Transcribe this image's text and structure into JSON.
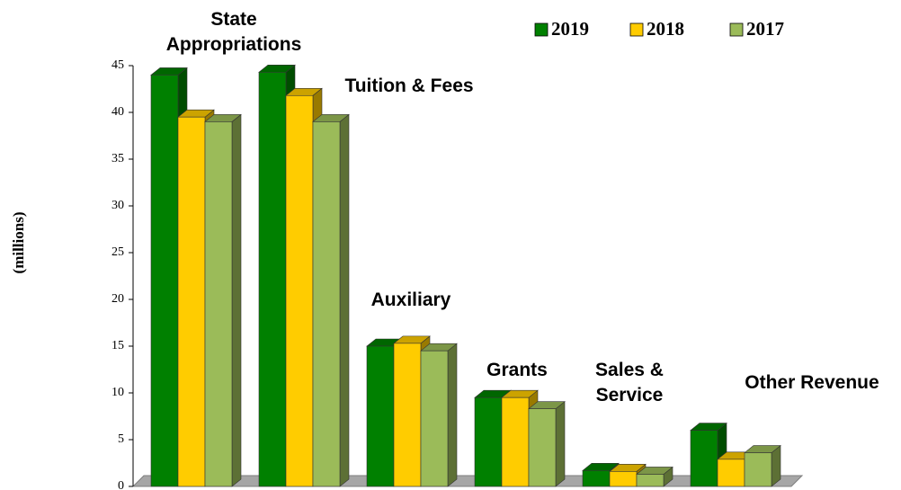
{
  "chart_data": {
    "type": "bar3d",
    "y_label": "(millions)",
    "categories": [
      "State Appropriations",
      "Tuition & Fees",
      "Auxiliary",
      "Grants",
      "Sales & Service",
      "Other Revenue"
    ],
    "series": [
      {
        "name": "2019",
        "color": "#008000",
        "values": [
          44,
          44.3,
          15,
          9.5,
          1.7,
          6
        ]
      },
      {
        "name": "2018",
        "color": "#ffcc00",
        "values": [
          39.5,
          41.8,
          15.3,
          9.5,
          1.6,
          2.9
        ]
      },
      {
        "name": "2017",
        "color": "#9bbb59",
        "values": [
          39,
          39,
          14.5,
          8.3,
          1.3,
          3.6
        ]
      }
    ],
    "ylim": [
      0,
      45
    ],
    "yticks": [
      0,
      5,
      10,
      15,
      20,
      25,
      30,
      35,
      40,
      45
    ],
    "legend": "top-right"
  }
}
